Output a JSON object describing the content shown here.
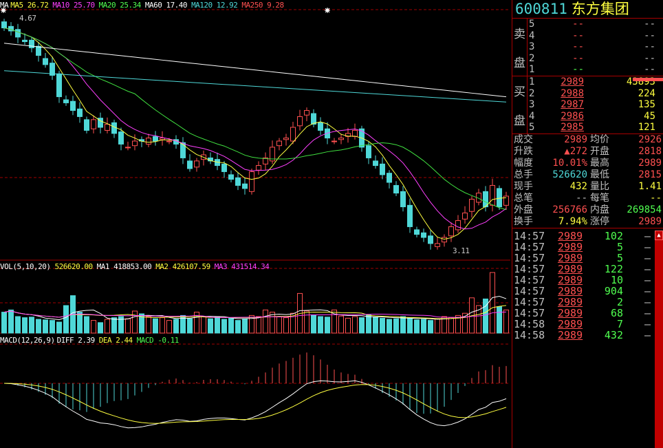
{
  "ma_legend": {
    "label": "MA",
    "ma5": "MA5 26.72",
    "ma10": "MA10 25.70",
    "ma20": "MA20 25.34",
    "ma60": "MA60 17.40",
    "ma120": "MA120 12.92",
    "ma250": "MA250 9.28"
  },
  "price_marks": {
    "high": "4.67",
    "low": "3.11"
  },
  "vol_legend": {
    "label": "VOL(5,10,20)",
    "value": "526620.00",
    "ma1": "MA1 418853.00",
    "ma2": "MA2 426107.59",
    "ma3": "MA3 431514.34"
  },
  "macd_legend": {
    "label": "MACD(12,26,9)",
    "diff": "DIFF 2.39",
    "dea": "DEA 2.44",
    "macd": "MACD -0.11"
  },
  "colors": {
    "up": "#ff5050",
    "down": "#4fd8d8",
    "ma5": "#ffff40",
    "ma10": "#ff40ff",
    "ma20": "#40e040",
    "ma60": "#ffffff",
    "ma120": "#4fd8d8",
    "grid": "#a00000"
  },
  "candles": {
    "closes": [
      4.6,
      4.58,
      4.54,
      4.51,
      4.47,
      4.42,
      4.36,
      4.29,
      4.15,
      4.11,
      4.06,
      4.02,
      3.93,
      4.0,
      3.95,
      3.97,
      3.91,
      3.84,
      3.82,
      3.86,
      3.86,
      3.88,
      3.86,
      3.88,
      3.86,
      3.84,
      3.75,
      3.68,
      3.73,
      3.77,
      3.73,
      3.7,
      3.66,
      3.61,
      3.57,
      3.55,
      3.66,
      3.7,
      3.75,
      3.82,
      3.86,
      3.88,
      3.95,
      4.02,
      4.06,
      3.97,
      3.93,
      3.88,
      3.86,
      3.88,
      3.91,
      3.93,
      3.82,
      3.75,
      3.7,
      3.64,
      3.59,
      3.52,
      3.43,
      3.3,
      3.25,
      3.23,
      3.19,
      3.19,
      3.23,
      3.3,
      3.34,
      3.39,
      3.48,
      3.52,
      3.43,
      3.57,
      3.43,
      3.5
    ],
    "volumes": [
      380,
      420,
      300,
      280,
      290,
      250,
      240,
      230,
      200,
      500,
      680,
      380,
      300,
      230,
      190,
      250,
      280,
      300,
      260,
      400,
      350,
      300,
      260,
      280,
      230,
      250,
      320,
      260,
      380,
      300,
      260,
      300,
      250,
      270,
      230,
      260,
      320,
      300,
      420,
      380,
      300,
      280,
      360,
      720,
      400,
      330,
      300,
      290,
      420,
      310,
      270,
      300,
      280,
      330,
      290,
      270,
      250,
      260,
      300,
      280,
      240,
      250,
      230,
      260,
      300,
      280,
      320,
      360,
      640,
      500,
      620,
      1100,
      480,
      420
    ]
  },
  "stock": {
    "code": "600811",
    "name": "东方集团"
  },
  "sell_book": {
    "label_top": "卖",
    "label_bottom": "盘",
    "rows": [
      {
        "level": "5",
        "price": "--",
        "vol": "--"
      },
      {
        "level": "4",
        "price": "--",
        "vol": "--"
      },
      {
        "level": "3",
        "price": "--",
        "vol": "--"
      },
      {
        "level": "2",
        "price": "--",
        "vol": "--"
      },
      {
        "level": "1",
        "price": "--",
        "vol": "--"
      }
    ]
  },
  "buy_book": {
    "label_top": "买",
    "label_bottom": "盘",
    "rows": [
      {
        "level": "1",
        "price": "2989",
        "vol": "43893"
      },
      {
        "level": "2",
        "price": "2988",
        "vol": "224"
      },
      {
        "level": "3",
        "price": "2987",
        "vol": "135"
      },
      {
        "level": "4",
        "price": "2986",
        "vol": "45"
      },
      {
        "level": "5",
        "price": "2985",
        "vol": "121"
      }
    ]
  },
  "stats": [
    {
      "l1": "成交",
      "v1": "2989",
      "l2": "均价",
      "v2": "2926"
    },
    {
      "l1": "升跌",
      "v1": "▲272",
      "l2": "开盘",
      "v2": "2818"
    },
    {
      "l1": "幅度",
      "v1": "10.01%",
      "l2": "最高",
      "v2": "2989"
    },
    {
      "l1": "总手",
      "v1": "526620",
      "l2": "最低",
      "v2": "2815"
    },
    {
      "l1": "现手",
      "v1": "432",
      "l2": "量比",
      "v2": "1.41"
    },
    {
      "l1": "总笔",
      "v1": "--",
      "l2": "每笔",
      "v2": "--"
    },
    {
      "l1": "外盘",
      "v1": "256766",
      "l2": "内盘",
      "v2": "269854"
    },
    {
      "l1": "换手",
      "v1": "7.94%",
      "l2": "涨停",
      "v2": "2989"
    }
  ],
  "trades": [
    {
      "time": "14:57",
      "price": "2989",
      "vol": "102"
    },
    {
      "time": "14:57",
      "price": "2989",
      "vol": "5"
    },
    {
      "time": "14:57",
      "price": "2989",
      "vol": "5"
    },
    {
      "time": "14:57",
      "price": "2989",
      "vol": "122"
    },
    {
      "time": "14:57",
      "price": "2989",
      "vol": "10"
    },
    {
      "time": "14:57",
      "price": "2989",
      "vol": "904"
    },
    {
      "time": "14:57",
      "price": "2989",
      "vol": "2"
    },
    {
      "time": "14:57",
      "price": "2989",
      "vol": "68"
    },
    {
      "time": "14:58",
      "price": "2989",
      "vol": "7"
    },
    {
      "time": "14:58",
      "price": "2989",
      "vol": "432"
    }
  ],
  "trade_dir": "—",
  "scroll_up": "▲"
}
